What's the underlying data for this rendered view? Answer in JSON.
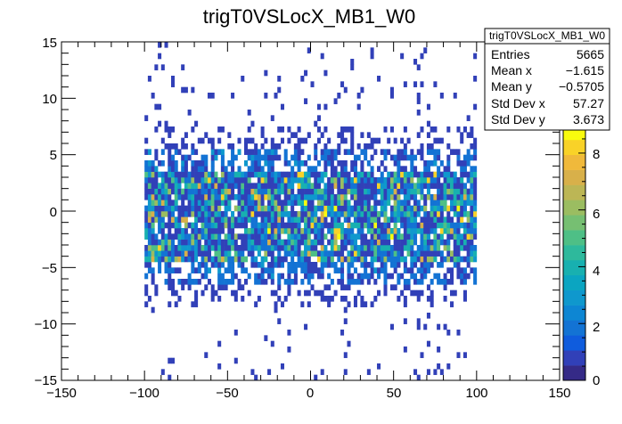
{
  "chart_data": {
    "type": "heatmap",
    "title": "trigT0VSLocX_MB1_W0",
    "xlabel": "",
    "ylabel": "",
    "xlim": [
      -150,
      150
    ],
    "ylim": [
      -15,
      15
    ],
    "x_ticks": [
      "−150",
      "−100",
      "−50",
      "0",
      "50",
      "100",
      "150"
    ],
    "y_ticks": [
      "−15",
      "−10",
      "−5",
      "0",
      "5",
      "10",
      "15"
    ],
    "colorbar": {
      "min": 0,
      "max": 9,
      "ticks": [
        "0",
        "2",
        "4",
        "6",
        "8"
      ],
      "palette": [
        "#352a87",
        "#3140b8",
        "#0f5cdd",
        "#1373d4",
        "#0d86d3",
        "#0f98cd",
        "#0ba5c1",
        "#18b0b0",
        "#2eb99c",
        "#4ebf86",
        "#76bf72",
        "#9bbd61",
        "#bcb655",
        "#d8b04a",
        "#f0b93b",
        "#f9d228",
        "#f9fb0e"
      ]
    },
    "stats_box": {
      "title": "trigT0VSLocX_MB1_W0",
      "rows": [
        {
          "label": "Entries",
          "value": "5665"
        },
        {
          "label": "Mean x",
          "value": "−1.615"
        },
        {
          "label": "Mean y",
          "value": "−0.5705"
        },
        {
          "label": "Std Dev x",
          "value": "57.27"
        },
        {
          "label": "Std Dev y",
          "value": "3.673"
        }
      ]
    },
    "bins": {
      "x_bin_width": 2,
      "y_bin_width": 0.5
    },
    "distribution": {
      "x_range": [
        -100,
        100
      ],
      "dense_y_range": [
        -4,
        4
      ],
      "sparse_y_range": [
        -15,
        15
      ],
      "peak_count": 9
    },
    "entries": 5665
  }
}
